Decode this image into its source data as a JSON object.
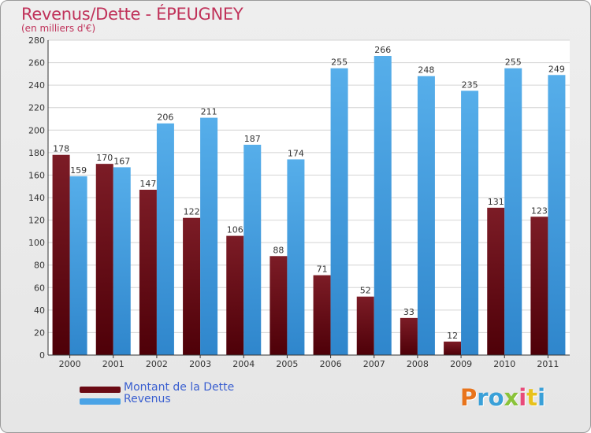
{
  "header": {
    "title": "Revenus/Dette - ÉPEUGNEY",
    "subtitle": "(en milliers d'€)"
  },
  "legend": [
    {
      "label": "Montant de la Dette",
      "color": "#6a0a14"
    },
    {
      "label": "Revenus",
      "color": "#4aa3e6"
    }
  ],
  "logo": {
    "letters": [
      "P",
      "r",
      "o",
      "x",
      "i",
      "t",
      "i"
    ],
    "colors": [
      "#e8741c",
      "#3aa0d8",
      "#3aa0d8",
      "#8ac33a",
      "#e84a7a",
      "#e8c21c",
      "#3aa0d8"
    ]
  },
  "chart_data": {
    "type": "bar",
    "categories": [
      "2000",
      "2001",
      "2002",
      "2003",
      "2004",
      "2005",
      "2006",
      "2007",
      "2008",
      "2009",
      "2010",
      "2011"
    ],
    "series": [
      {
        "name": "Montant de la Dette",
        "color": "#6a0a14",
        "values": [
          178,
          170,
          147,
          122,
          106,
          88,
          71,
          52,
          33,
          12,
          131,
          123
        ]
      },
      {
        "name": "Revenus",
        "color": "#4aa3e6",
        "values": [
          159,
          167,
          206,
          211,
          187,
          174,
          255,
          266,
          248,
          235,
          255,
          249
        ]
      }
    ],
    "title": "Revenus/Dette - ÉPEUGNEY",
    "ylabel": "(en milliers d'€)",
    "ylim": [
      0,
      280
    ],
    "yticks": [
      0,
      20,
      40,
      60,
      80,
      100,
      120,
      140,
      160,
      180,
      200,
      220,
      240,
      260,
      280
    ],
    "grid": true,
    "legend_position": "bottom-left"
  }
}
